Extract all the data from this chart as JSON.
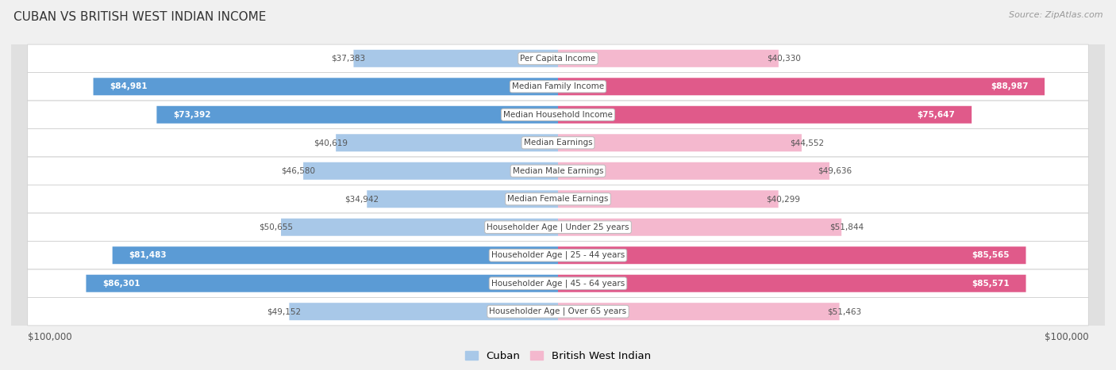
{
  "title": "Cuban vs British West Indian Income",
  "source": "Source: ZipAtlas.com",
  "categories": [
    "Per Capita Income",
    "Median Family Income",
    "Median Household Income",
    "Median Earnings",
    "Median Male Earnings",
    "Median Female Earnings",
    "Householder Age | Under 25 years",
    "Householder Age | 25 - 44 years",
    "Householder Age | 45 - 64 years",
    "Householder Age | Over 65 years"
  ],
  "cuban_values": [
    37383,
    84981,
    73392,
    40619,
    46580,
    34942,
    50655,
    81483,
    86301,
    49152
  ],
  "bwi_values": [
    40330,
    88987,
    75647,
    44552,
    49636,
    40299,
    51844,
    85565,
    85571,
    51463
  ],
  "cuban_color_light": "#a8c8e8",
  "cuban_color_dark": "#5b9bd5",
  "bwi_color_light": "#f4b8ce",
  "bwi_color_dark": "#e05a8a",
  "max_value": 100000,
  "background_color": "#e8e8e8",
  "row_bg_color": "#ffffff",
  "xlabel_left": "$100,000",
  "xlabel_right": "$100,000",
  "cuban_threshold": 60000,
  "bwi_threshold": 60000,
  "legend_cuban": "Cuban",
  "legend_bwi": "British West Indian"
}
